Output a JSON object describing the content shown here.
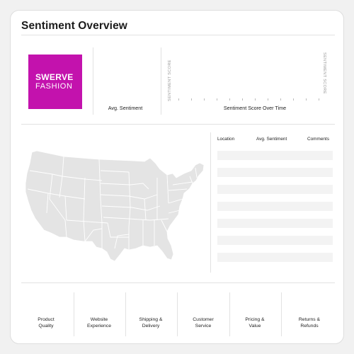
{
  "page_title": "Sentiment Overview",
  "logo": {
    "line1": "SWERVE",
    "line2": "FASHION",
    "color": "#c312ad"
  },
  "kpi": {
    "avg_sentiment_label": "Avg. Sentiment"
  },
  "trend_chart": {
    "title": "Sentiment Score Over Time",
    "left_axis_label": "SENTIMENT SCORE",
    "right_axis_label": "SENTIMENT SCORE"
  },
  "location_table": {
    "columns": [
      "Location",
      "Avg. Sentiment",
      "Comments"
    ],
    "rows": [
      "",
      "",
      "",
      "",
      "",
      "",
      "",
      "",
      "",
      "",
      ""
    ]
  },
  "categories": [
    {
      "line1": "Product",
      "line2": "Quality"
    },
    {
      "line1": "Website",
      "line2": "Experience"
    },
    {
      "line1": "Shipping &",
      "line2": "Delivery"
    },
    {
      "line1": "Customer",
      "line2": "Service"
    },
    {
      "line1": "Pricing &",
      "line2": "Value"
    },
    {
      "line1": "Returns &",
      "line2": "Refunds"
    }
  ],
  "map": {
    "region": "United States",
    "fill": "#e4e4e4",
    "border": "#ffffff"
  }
}
